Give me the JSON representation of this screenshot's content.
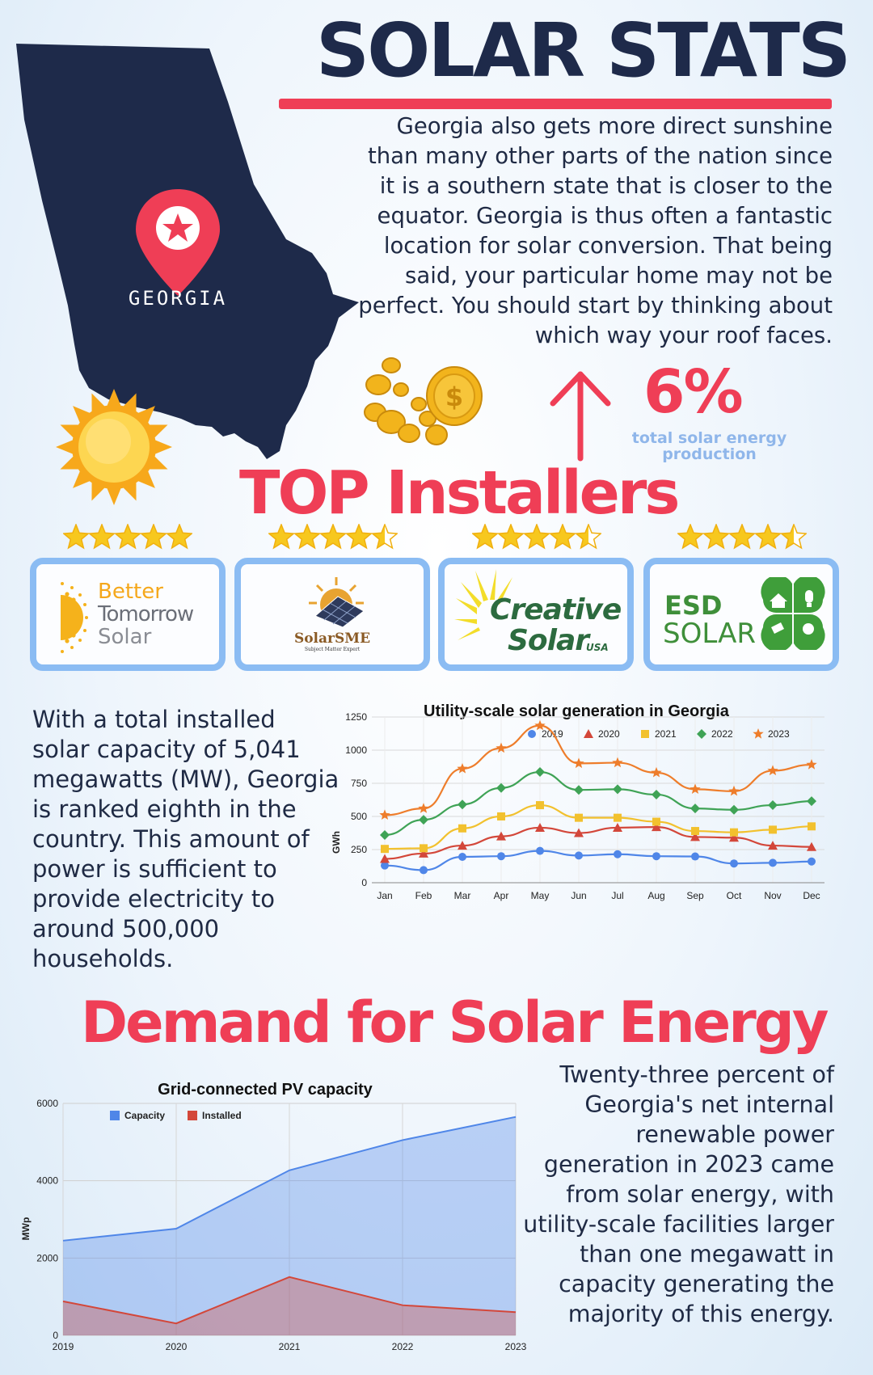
{
  "header": {
    "title": "SOLAR STATS"
  },
  "map": {
    "state_label": "GEORGIA"
  },
  "intro_text": "Georgia also gets more direct sunshine than many other parts of the nation since it is a southern state that is closer to the equator. Georgia is thus often a fantastic location for solar conversion. That being said, your particular home may not be perfect. You should start by thinking about which way your roof faces.",
  "stat": {
    "value": "6%",
    "caption": "total solar energy production"
  },
  "installers": {
    "heading": "TOP Installers",
    "items": [
      {
        "name_line1": "Better",
        "name_line2": "Tomorrow",
        "name_line3": "Solar",
        "rating": 5
      },
      {
        "name_line1": "SolarSME",
        "name_line2": "Subject Matter Expert",
        "rating": 4.5
      },
      {
        "name_line1": "Creative",
        "name_line2": "Solar",
        "name_line3": "USA",
        "rating": 4.5
      },
      {
        "name_line1": "ESD",
        "name_line2": "SOLAR",
        "rating": 4.5
      }
    ]
  },
  "capacity_text": "With a total installed solar capacity of 5,041 megawatts (MW), Georgia is ranked eighth in the country. This amount of power is sufficient to provide electricity to around 500,000 households.",
  "demand_heading": "Demand for Solar Energy",
  "share_text": "Twenty-three percent of Georgia's net internal renewable power generation in 2023 came from solar energy, with utility-scale facilities larger than one megawatt in capacity generating the majority of this energy.",
  "colors": {
    "navy": "#1e2a4a",
    "accent_red": "#ef3e56",
    "card_border": "#8bbcf3",
    "caption_blue": "#8fb6ea"
  },
  "chart_data": [
    {
      "type": "line",
      "title": "Utility-scale solar generation in Georgia",
      "ylabel": "GWh",
      "xlabel": "",
      "categories": [
        "Jan",
        "Feb",
        "Mar",
        "Apr",
        "May",
        "Jun",
        "Jul",
        "Aug",
        "Sep",
        "Oct",
        "Nov",
        "Dec"
      ],
      "ylim": [
        0,
        1250
      ],
      "yticks": [
        0,
        250,
        500,
        750,
        1000,
        1250
      ],
      "grid": true,
      "legend": "top",
      "series": [
        {
          "name": "2019",
          "color": "#4f86e8",
          "marker": "circle",
          "values": [
            130,
            95,
            195,
            200,
            240,
            205,
            215,
            200,
            198,
            145,
            150,
            160
          ]
        },
        {
          "name": "2020",
          "color": "#d3473a",
          "marker": "triangle",
          "values": [
            180,
            220,
            280,
            350,
            415,
            375,
            415,
            420,
            345,
            340,
            280,
            270
          ]
        },
        {
          "name": "2021",
          "color": "#f2c12e",
          "marker": "square",
          "values": [
            255,
            260,
            410,
            500,
            585,
            490,
            490,
            460,
            390,
            380,
            400,
            425
          ]
        },
        {
          "name": "2022",
          "color": "#3fa356",
          "marker": "diamond",
          "values": [
            360,
            475,
            590,
            715,
            835,
            700,
            705,
            665,
            560,
            550,
            585,
            615
          ]
        },
        {
          "name": "2023",
          "color": "#ee7d2b",
          "marker": "star",
          "values": [
            510,
            560,
            860,
            1015,
            1185,
            900,
            905,
            830,
            705,
            690,
            845,
            890
          ]
        }
      ]
    },
    {
      "type": "area",
      "title": "Grid-connected PV capacity",
      "ylabel": "MWp",
      "xlabel": "",
      "categories": [
        "2019",
        "2020",
        "2021",
        "2022",
        "2023"
      ],
      "ylim": [
        0,
        6000
      ],
      "yticks": [
        0,
        2000,
        4000,
        6000
      ],
      "grid": true,
      "legend": "top-left",
      "series": [
        {
          "name": "Capacity",
          "color": "#4f86e8",
          "values": [
            2450,
            2760,
            4270,
            5050,
            5650
          ]
        },
        {
          "name": "Installed",
          "color": "#d3473a",
          "values": [
            880,
            310,
            1510,
            780,
            600
          ]
        }
      ]
    }
  ]
}
